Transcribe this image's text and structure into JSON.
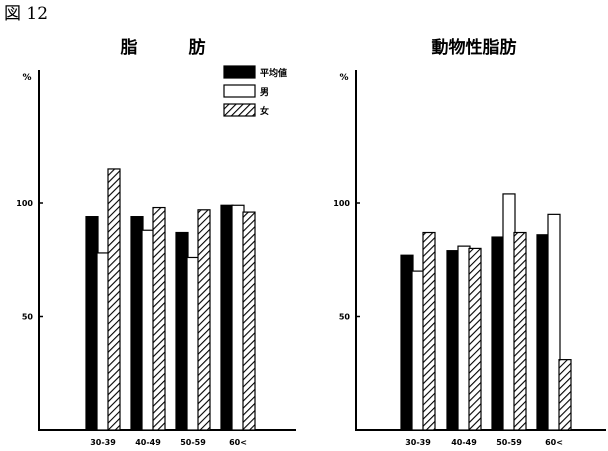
{
  "figure_label": "図 12",
  "legend": [
    {
      "name": "平均値",
      "pattern": "solid"
    },
    {
      "name": "男",
      "pattern": "open"
    },
    {
      "name": "女",
      "pattern": "hatched"
    }
  ],
  "chart_data": [
    {
      "type": "bar",
      "title": "脂　　　肪",
      "unit": "%",
      "categories": [
        "30-39",
        "40-49",
        "50-59",
        "60<"
      ],
      "yticks": [
        50,
        100
      ],
      "ylim": [
        0,
        130
      ],
      "series": [
        {
          "name": "平均値",
          "values": [
            94,
            94,
            87,
            99
          ]
        },
        {
          "name": "男",
          "values": [
            78,
            88,
            76,
            99
          ]
        },
        {
          "name": "女",
          "values": [
            115,
            98,
            97,
            96
          ]
        }
      ]
    },
    {
      "type": "bar",
      "title": "動物性脂肪",
      "unit": "%",
      "categories": [
        "30-39",
        "40-49",
        "50-59",
        "60<"
      ],
      "yticks": [
        50,
        100
      ],
      "ylim": [
        0,
        130
      ],
      "series": [
        {
          "name": "平均値",
          "values": [
            77,
            79,
            85,
            86
          ]
        },
        {
          "name": "男",
          "values": [
            70,
            81,
            104,
            95
          ]
        },
        {
          "name": "女",
          "values": [
            87,
            80,
            87,
            31
          ]
        }
      ]
    }
  ]
}
